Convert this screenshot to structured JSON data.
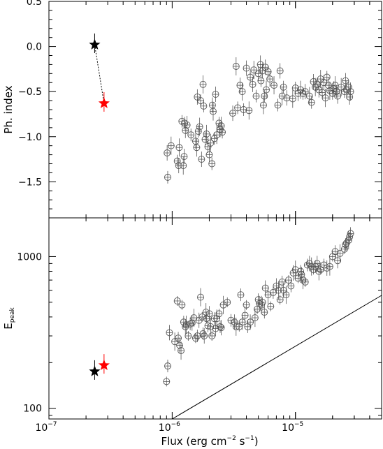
{
  "figure": {
    "xlabel": "Flux (erg cm",
    "xlabel_sup1": "−2",
    "xlabel_mid": " s",
    "xlabel_sup2": "−1",
    "xlabel_end": ")"
  },
  "chart_data": [
    {
      "type": "scatter",
      "panel": "top",
      "ylabel": "Ph. index",
      "x_scale": "log",
      "xlim": [
        1e-07,
        5e-05
      ],
      "ylim": [
        -1.9,
        0.5
      ],
      "y_ticks": [
        0.5,
        0.0,
        -0.5,
        -1.0,
        -1.5
      ],
      "y_tick_labels": [
        "0.5",
        "0.0",
        "−0.5",
        "−1.0",
        "−1.5"
      ],
      "marker_color": "#555555",
      "points": [
        [
          9.2e-07,
          -1.45
        ],
        [
          9.1e-07,
          -1.18
        ],
        [
          9.8e-07,
          -1.1
        ],
        [
          1.1e-06,
          -1.27
        ],
        [
          1.13e-06,
          -1.32
        ],
        [
          1.14e-06,
          -1.12
        ],
        [
          1.2e-06,
          -0.83
        ],
        [
          1.25e-06,
          -1.22
        ],
        [
          1.23e-06,
          -1.32
        ],
        [
          1.26e-06,
          -0.85
        ],
        [
          1.28e-06,
          -0.93
        ],
        [
          1.32e-06,
          -0.87
        ],
        [
          1.42e-06,
          -0.98
        ],
        [
          1.55e-06,
          -1.05
        ],
        [
          1.58e-06,
          -1.12
        ],
        [
          1.63e-06,
          -0.94
        ],
        [
          1.6e-06,
          -0.56
        ],
        [
          1.67e-06,
          -0.89
        ],
        [
          1.7e-06,
          -0.6
        ],
        [
          1.73e-06,
          -1.25
        ],
        [
          1.78e-06,
          -0.42
        ],
        [
          1.8e-06,
          -0.66
        ],
        [
          1.85e-06,
          -1.03
        ],
        [
          1.9e-06,
          -0.97
        ],
        [
          1.95e-06,
          -1.11
        ],
        [
          2e-06,
          -1.2
        ],
        [
          2.05e-06,
          -1.07
        ],
        [
          2.1e-06,
          -1.3
        ],
        [
          2.12e-06,
          -0.65
        ],
        [
          2.15e-06,
          -0.72
        ],
        [
          2.2e-06,
          -1.02
        ],
        [
          2.25e-06,
          -0.53
        ],
        [
          2.3e-06,
          -0.98
        ],
        [
          2.4e-06,
          -0.85
        ],
        [
          2.45e-06,
          -0.92
        ],
        [
          2.5e-06,
          -0.88
        ],
        [
          2.55e-06,
          -0.95
        ],
        [
          3.1e-06,
          -0.74
        ],
        [
          3.3e-06,
          -0.22
        ],
        [
          3.4e-06,
          -0.68
        ],
        [
          3.55e-06,
          -0.43
        ],
        [
          3.7e-06,
          -0.5
        ],
        [
          3.8e-06,
          -0.7
        ],
        [
          4e-06,
          -0.24
        ],
        [
          4.2e-06,
          -0.71
        ],
        [
          4.3e-06,
          -0.34
        ],
        [
          4.5e-06,
          -0.42
        ],
        [
          4.6e-06,
          -0.26
        ],
        [
          4.8e-06,
          -0.55
        ],
        [
          5e-06,
          -0.3
        ],
        [
          5.2e-06,
          -0.2
        ],
        [
          5.25e-06,
          -0.38
        ],
        [
          5.4e-06,
          -0.27
        ],
        [
          5.5e-06,
          -0.65
        ],
        [
          5.6e-06,
          -0.55
        ],
        [
          5.7e-06,
          -0.23
        ],
        [
          5.8e-06,
          -0.48
        ],
        [
          6e-06,
          -0.28
        ],
        [
          6.2e-06,
          -0.36
        ],
        [
          6.7e-06,
          -0.43
        ],
        [
          7.2e-06,
          -0.65
        ],
        [
          7.5e-06,
          -0.27
        ],
        [
          7.8e-06,
          -0.55
        ],
        [
          8e-06,
          -0.45
        ],
        [
          8.5e-06,
          -0.57
        ],
        [
          9.5e-06,
          -0.58
        ],
        [
          1e-05,
          -0.46
        ],
        [
          1.05e-05,
          -0.52
        ],
        [
          1.1e-05,
          -0.48
        ],
        [
          1.15e-05,
          -0.52
        ],
        [
          1.2e-05,
          -0.5
        ],
        [
          1.3e-05,
          -0.55
        ],
        [
          1.35e-05,
          -0.62
        ],
        [
          1.4e-05,
          -0.39
        ],
        [
          1.45e-05,
          -0.45
        ],
        [
          1.5e-05,
          -0.42
        ],
        [
          1.55e-05,
          -0.48
        ],
        [
          1.6e-05,
          -0.36
        ],
        [
          1.65e-05,
          -0.51
        ],
        [
          1.7e-05,
          -0.4
        ],
        [
          1.75e-05,
          -0.57
        ],
        [
          1.8e-05,
          -0.34
        ],
        [
          1.85e-05,
          -0.43
        ],
        [
          1.9e-05,
          -0.49
        ],
        [
          2e-05,
          -0.52
        ],
        [
          2.05e-05,
          -0.47
        ],
        [
          2.1e-05,
          -0.43
        ],
        [
          2.15e-05,
          -0.5
        ],
        [
          2.2e-05,
          -0.55
        ],
        [
          2.35e-05,
          -0.45
        ],
        [
          2.5e-05,
          -0.5
        ],
        [
          2.55e-05,
          -0.38
        ],
        [
          2.6e-05,
          -0.48
        ],
        [
          2.7e-05,
          -0.45
        ],
        [
          2.75e-05,
          -0.56
        ],
        [
          2.8e-05,
          -0.5
        ]
      ],
      "stars": [
        {
          "x": 2.35e-07,
          "y": 0.02,
          "color": "#000000"
        },
        {
          "x": 2.8e-07,
          "y": -0.63,
          "color": "#ff0000"
        }
      ]
    },
    {
      "type": "scatter",
      "panel": "bottom",
      "ylabel": "E",
      "ylabel_sub": "peak",
      "x_scale": "log",
      "y_scale": "log",
      "xlim": [
        1e-07,
        5e-05
      ],
      "ylim": [
        85,
        1800
      ],
      "y_ticks": [
        100,
        1000
      ],
      "y_tick_labels": [
        "100",
        "1000"
      ],
      "x_tick_labels": [
        {
          "m": "10",
          "e": "−7"
        },
        {
          "m": "10",
          "e": "−6"
        },
        {
          "m": "10",
          "e": "−5"
        }
      ],
      "marker_color": "#555555",
      "reference_line": {
        "x": [
          1e-06,
          5e-05
        ],
        "y": [
          85,
          555
        ]
      },
      "points": [
        [
          9e-07,
          150
        ],
        [
          9.2e-07,
          190
        ],
        [
          9.5e-07,
          315
        ],
        [
          1.05e-06,
          275
        ],
        [
          1.1e-06,
          510
        ],
        [
          1.12e-06,
          290
        ],
        [
          1.15e-06,
          260
        ],
        [
          1.18e-06,
          240
        ],
        [
          1.2e-06,
          480
        ],
        [
          1.24e-06,
          370
        ],
        [
          1.28e-06,
          345
        ],
        [
          1.3e-06,
          355
        ],
        [
          1.35e-06,
          300
        ],
        [
          1.4e-06,
          360
        ],
        [
          1.45e-06,
          365
        ],
        [
          1.5e-06,
          395
        ],
        [
          1.55e-06,
          290
        ],
        [
          1.6e-06,
          300
        ],
        [
          1.65e-06,
          380
        ],
        [
          1.7e-06,
          540
        ],
        [
          1.75e-06,
          400
        ],
        [
          1.78e-06,
          310
        ],
        [
          1.82e-06,
          300
        ],
        [
          1.88e-06,
          430
        ],
        [
          1.9e-06,
          390
        ],
        [
          1.95e-06,
          350
        ],
        [
          2e-06,
          420
        ],
        [
          2.05e-06,
          345
        ],
        [
          2.1e-06,
          300
        ],
        [
          2.2e-06,
          390
        ],
        [
          2.25e-06,
          335
        ],
        [
          2.3e-06,
          390
        ],
        [
          2.4e-06,
          420
        ],
        [
          2.45e-06,
          345
        ],
        [
          2.5e-06,
          340
        ],
        [
          2.6e-06,
          480
        ],
        [
          2.8e-06,
          500
        ],
        [
          3e-06,
          380
        ],
        [
          3.2e-06,
          370
        ],
        [
          3.3e-06,
          345
        ],
        [
          3.5e-06,
          345
        ],
        [
          3.6e-06,
          560
        ],
        [
          3.7e-06,
          370
        ],
        [
          3.9e-06,
          410
        ],
        [
          4e-06,
          480
        ],
        [
          4.1e-06,
          345
        ],
        [
          4.3e-06,
          370
        ],
        [
          4.7e-06,
          395
        ],
        [
          4.9e-06,
          450
        ],
        [
          5e-06,
          520
        ],
        [
          5.1e-06,
          490
        ],
        [
          5.3e-06,
          480
        ],
        [
          5.4e-06,
          500
        ],
        [
          5.6e-06,
          430
        ],
        [
          5.7e-06,
          620
        ],
        [
          6e-06,
          560
        ],
        [
          6.3e-06,
          470
        ],
        [
          6.6e-06,
          580
        ],
        [
          7e-06,
          640
        ],
        [
          7.3e-06,
          600
        ],
        [
          7.5e-06,
          520
        ],
        [
          7.8e-06,
          680
        ],
        [
          8e-06,
          600
        ],
        [
          8.4e-06,
          560
        ],
        [
          8.8e-06,
          700
        ],
        [
          9.2e-06,
          640
        ],
        [
          9.6e-06,
          780
        ],
        [
          1e-05,
          820
        ],
        [
          1.05e-05,
          720
        ],
        [
          1.1e-05,
          800
        ],
        [
          1.12e-05,
          760
        ],
        [
          1.15e-05,
          700
        ],
        [
          1.2e-05,
          680
        ],
        [
          1.25e-05,
          880
        ],
        [
          1.3e-05,
          900
        ],
        [
          1.35e-05,
          860
        ],
        [
          1.4e-05,
          820
        ],
        [
          1.45e-05,
          860
        ],
        [
          1.5e-05,
          900
        ],
        [
          1.55e-05,
          800
        ],
        [
          1.6e-05,
          820
        ],
        [
          1.7e-05,
          880
        ],
        [
          1.8e-05,
          840
        ],
        [
          1.9e-05,
          860
        ],
        [
          2e-05,
          1000
        ],
        [
          2.1e-05,
          1080
        ],
        [
          2.2e-05,
          940
        ],
        [
          2.3e-05,
          1050
        ],
        [
          2.5e-05,
          1120
        ],
        [
          2.55e-05,
          1200
        ],
        [
          2.6e-05,
          1230
        ],
        [
          2.7e-05,
          1280
        ],
        [
          2.75e-05,
          1350
        ],
        [
          2.8e-05,
          1420
        ]
      ],
      "stars": [
        {
          "x": 2.35e-07,
          "y": 175,
          "color": "#000000"
        },
        {
          "x": 2.8e-07,
          "y": 192,
          "color": "#ff0000"
        }
      ]
    }
  ]
}
